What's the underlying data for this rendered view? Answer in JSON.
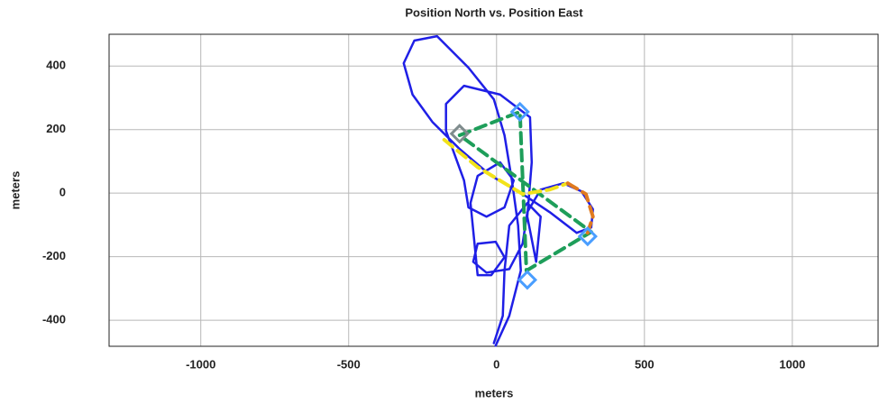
{
  "chart_data": {
    "type": "line",
    "title": "Position North vs. Position East",
    "xlabel": "meters",
    "ylabel": "meters",
    "xlim": [
      -1310,
      1290
    ],
    "ylim": [
      -482,
      500
    ],
    "xticks": [
      -1000,
      -500,
      0,
      500,
      1000
    ],
    "yticks": [
      -400,
      -200,
      0,
      200,
      400
    ],
    "grid": true,
    "series": [
      {
        "color": "#1f1fe6",
        "dash": false,
        "x": [
          -3,
          43,
          82,
          73,
          52,
          27,
          -9,
          -95,
          -201,
          -278,
          -314,
          -284,
          -217,
          -125,
          -18,
          88,
          180,
          271,
          320,
          326,
          287,
          226,
          149,
          104,
          88,
          43,
          -34,
          -79,
          -64,
          -3,
          27,
          -18,
          -64,
          -88,
          -64,
          12,
          58,
          27,
          -34,
          -95,
          -110,
          -171,
          -171,
          -110,
          12,
          113,
          119,
          104,
          134,
          149,
          104,
          43,
          27,
          21,
          -9
        ],
        "values": [
          -480,
          -386,
          -244,
          -102,
          40,
          182,
          295,
          395,
          494,
          480,
          409,
          310,
          224,
          139,
          54,
          -3,
          -60,
          -125,
          -108,
          -51,
          6,
          31,
          11,
          -60,
          -159,
          -239,
          -250,
          -216,
          -159,
          -153,
          -202,
          -258,
          -258,
          -31,
          54,
          97,
          40,
          -45,
          -74,
          -45,
          40,
          196,
          281,
          338,
          310,
          239,
          97,
          -74,
          -216,
          -74,
          -31,
          -102,
          -244,
          -386,
          -472
        ]
      },
      {
        "color": "#1e9e5a",
        "dash": true,
        "x": [
          -125,
          79,
          101,
          320,
          -125
        ],
        "values": [
          182,
          256,
          -244,
          -122,
          182
        ]
      },
      {
        "color": "#f2e21a",
        "dash": true,
        "x": [
          -177,
          -64,
          88,
          180,
          241
        ],
        "values": [
          168,
          82,
          -3,
          11,
          31
        ]
      },
      {
        "color": "#e07a1f",
        "dash": true,
        "x": [
          241,
          302,
          326,
          308
        ],
        "values": [
          31,
          -3,
          -74,
          -125
        ]
      },
      {
        "color": "#4a9eff",
        "marker": "diamond",
        "x": [
          79,
          104,
          308
        ],
        "values": [
          256,
          -273,
          -136
        ]
      },
      {
        "color": "#7f8c8d",
        "marker": "diamond",
        "x": [
          -125
        ],
        "values": [
          187
        ]
      }
    ]
  }
}
